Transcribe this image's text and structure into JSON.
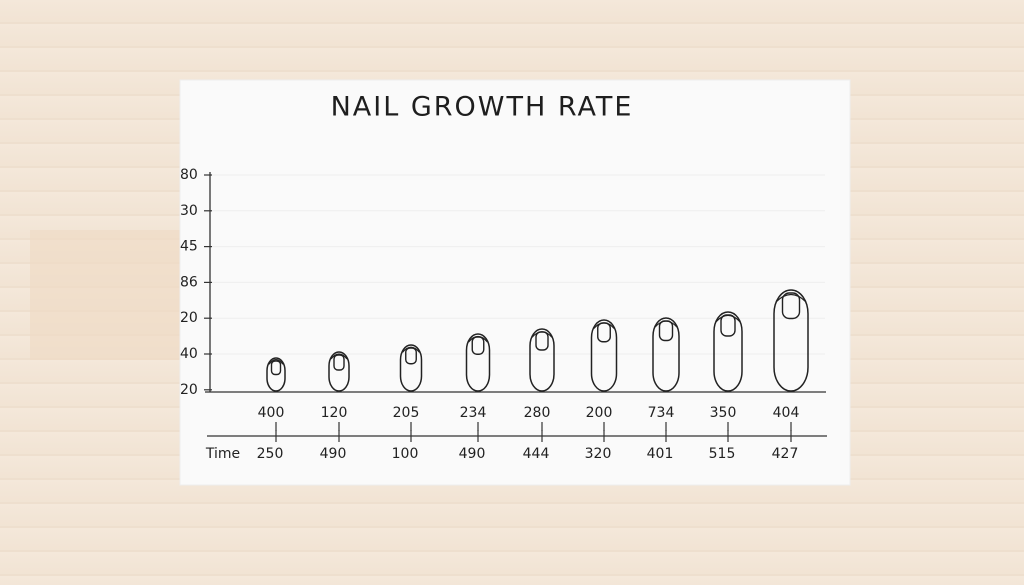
{
  "chart_data": {
    "type": "nail-illustration",
    "title": "NAIL GROWTH RATE",
    "y_labels": [
      "80",
      "30",
      "45",
      "86",
      "20",
      "40",
      "20"
    ],
    "categories": [
      "400",
      "120",
      "205",
      "234",
      "280",
      "200",
      "734",
      "350",
      "404"
    ],
    "second_row_label": "Time",
    "second_row": [
      "250",
      "490",
      "100",
      "490",
      "444",
      "320",
      "401",
      "515",
      "427"
    ]
  }
}
